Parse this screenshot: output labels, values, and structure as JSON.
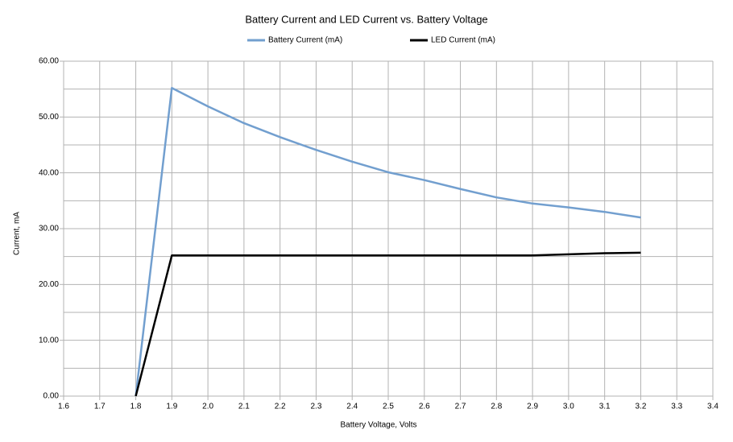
{
  "chart_data": {
    "type": "line",
    "title": "Battery Current and LED Current vs. Battery Voltage",
    "x_label": "Battery Voltage, Volts",
    "y_label": "Current, mA",
    "x": [
      1.8,
      1.9,
      2.0,
      2.1,
      2.2,
      2.3,
      2.4,
      2.5,
      2.6,
      2.7,
      2.8,
      2.9,
      3.0,
      3.1,
      3.2
    ],
    "series": [
      {
        "name": "Battery Current  (mA)",
        "color": "#729fcf",
        "values": [
          0,
          55.2,
          51.9,
          48.9,
          46.4,
          44.1,
          42.0,
          40.1,
          38.7,
          37.1,
          35.6,
          34.5,
          33.8,
          33.0,
          32.0
        ]
      },
      {
        "name": "LED Current  (mA)",
        "color": "#000000",
        "values": [
          0,
          25.2,
          25.2,
          25.2,
          25.2,
          25.2,
          25.2,
          25.2,
          25.2,
          25.2,
          25.2,
          25.2,
          25.4,
          25.6,
          25.7
        ]
      }
    ],
    "xlim": [
      1.6,
      3.4
    ],
    "xticks": [
      1.6,
      1.7,
      1.8,
      1.9,
      {
        "value": 2,
        "label": "2.0"
      },
      2.1,
      2.2,
      2.3,
      2.4,
      2.5,
      2.6,
      2.7,
      2.8,
      2.9,
      {
        "value": 3,
        "label": "3.0"
      },
      3.1,
      3.2,
      3.3,
      3.4
    ],
    "ylim": [
      0,
      60
    ],
    "yticks": [
      {
        "value": 0,
        "label": "0.00"
      },
      {
        "value": 10,
        "label": "10.00"
      },
      {
        "value": 20,
        "label": "20.00"
      },
      {
        "value": 30,
        "label": "30.00"
      },
      {
        "value": 40,
        "label": "40.00"
      },
      {
        "value": 50,
        "label": "50.00"
      },
      {
        "value": 60,
        "label": "60.00"
      }
    ],
    "y_minor_gridlines": [
      5,
      15,
      25,
      35,
      45,
      55
    ],
    "grid": true,
    "legend": "top"
  }
}
